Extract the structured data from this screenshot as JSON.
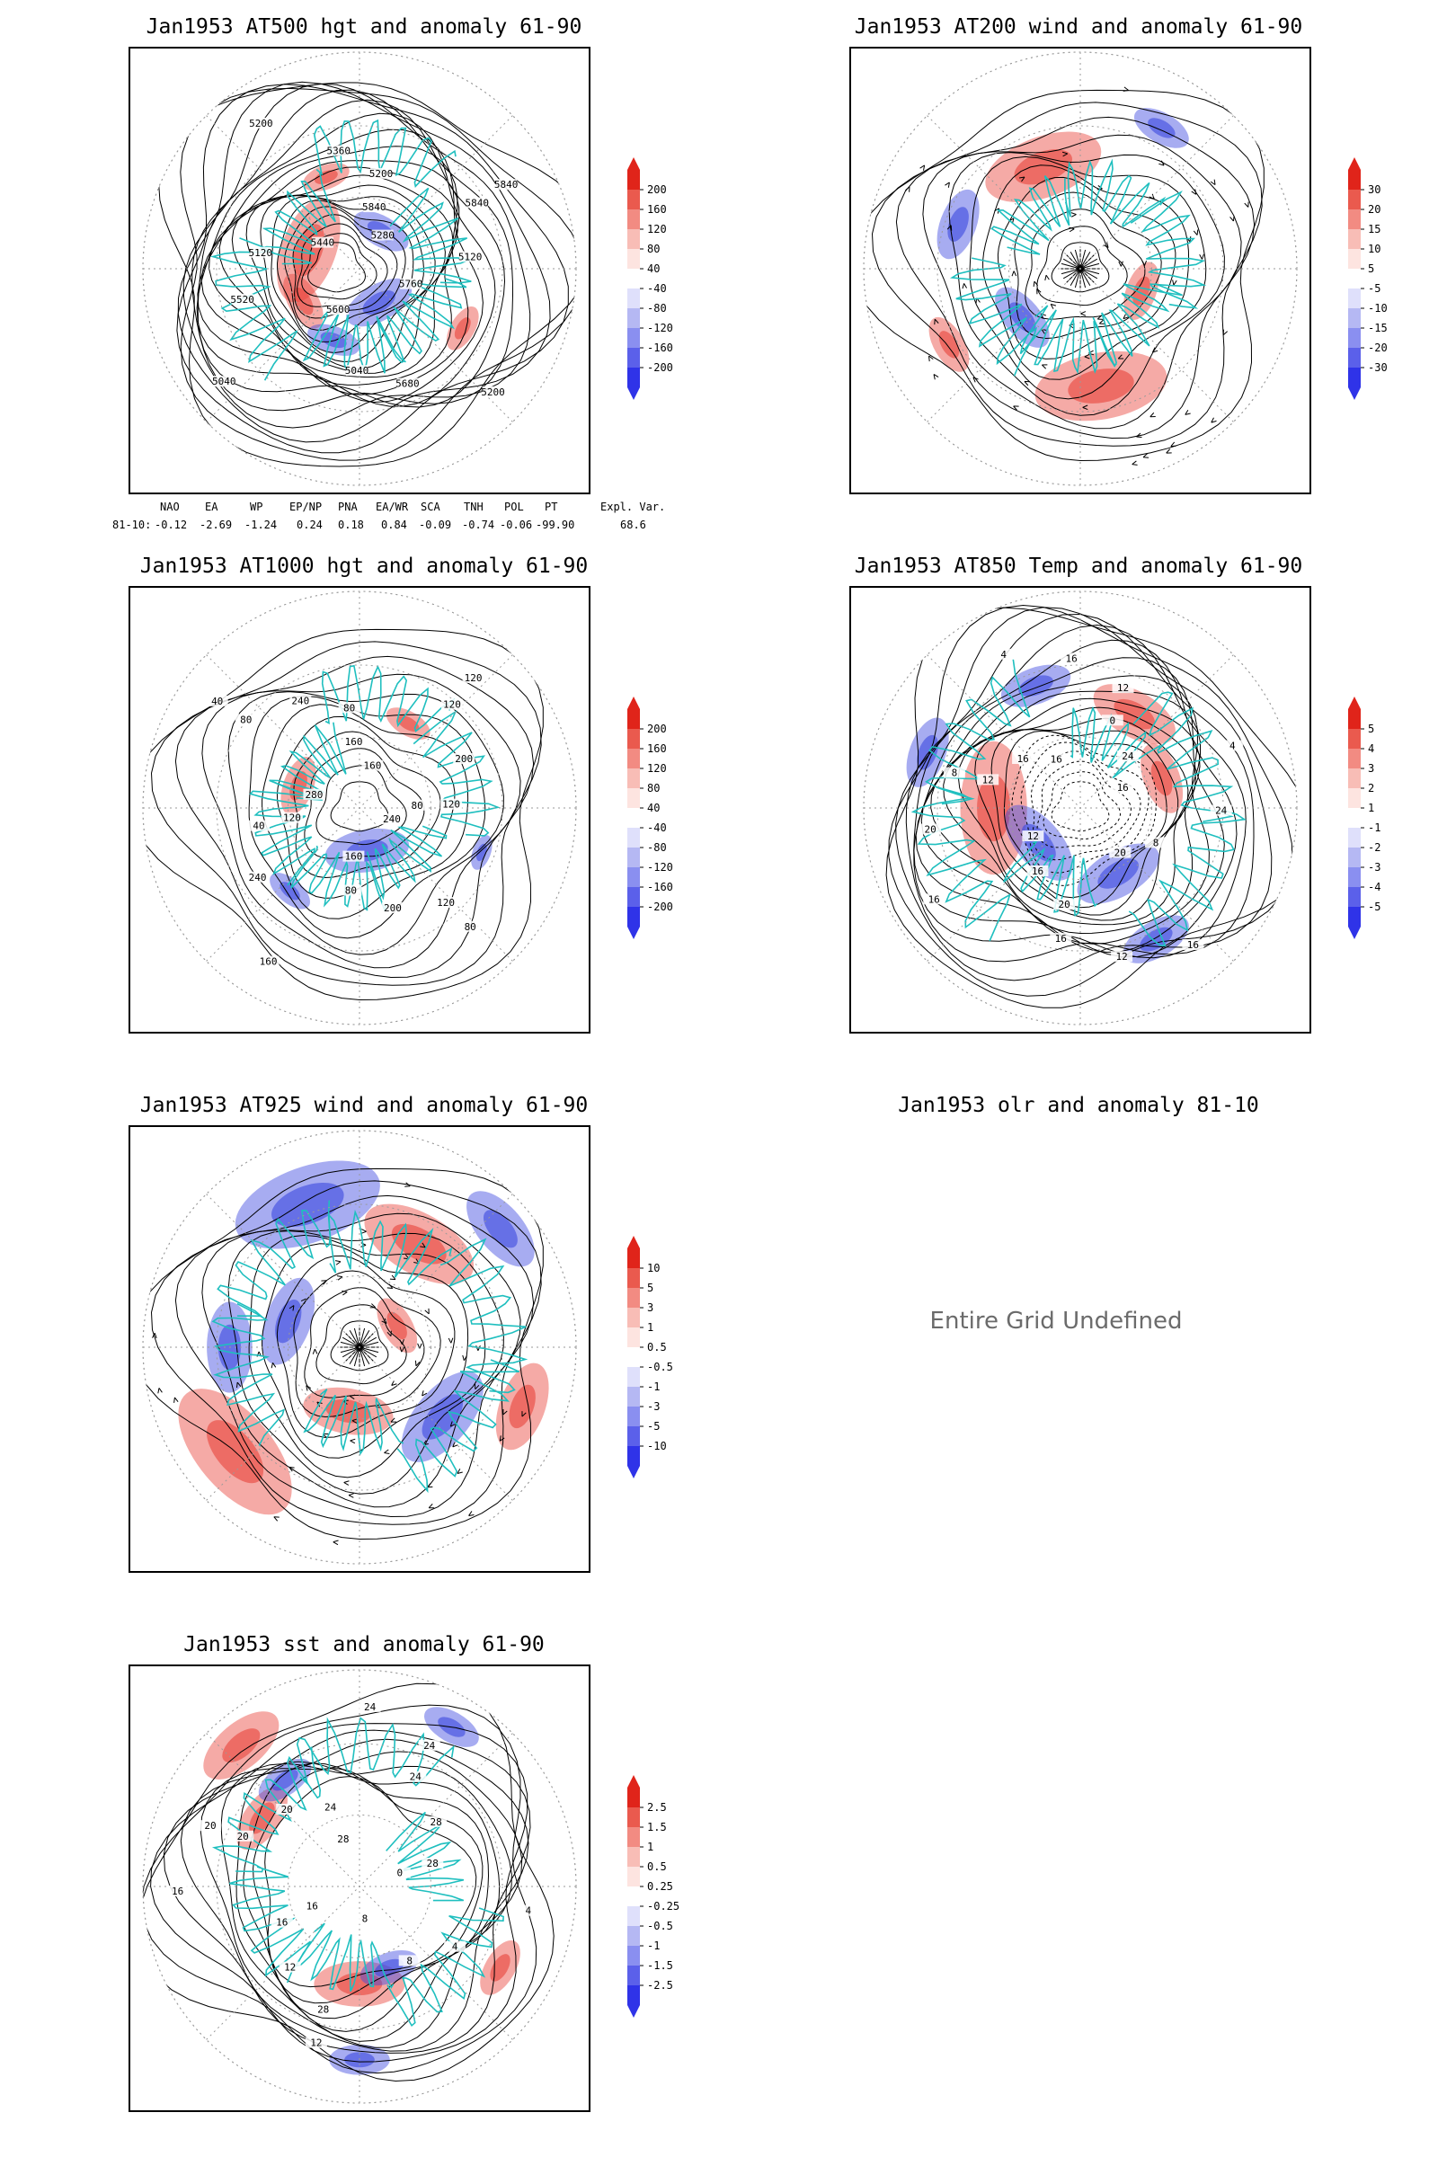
{
  "panels": [
    {
      "title": "Jan1953 AT500 hgt and anomaly 61-90",
      "contour_labels": [
        "5840",
        "5200",
        "5200",
        "5120",
        "5040",
        "5040",
        "5200",
        "5120",
        "5280",
        "5360",
        "5440",
        "5520",
        "5600",
        "5680",
        "5760",
        "5840",
        "5840"
      ],
      "colorbar": [
        "200",
        "160",
        "120",
        "80",
        "40",
        "-40",
        "-80",
        "-120",
        "-160",
        "-200"
      ]
    },
    {
      "title": "Jan1953 AT200 wind and anomaly 61-90",
      "colorbar": [
        "30",
        "20",
        "15",
        "10",
        "5",
        "-5",
        "-10",
        "-15",
        "-20",
        "-30"
      ]
    },
    {
      "title": "Jan1953 AT1000 hgt and anomaly 61-90",
      "contour_labels": [
        "80",
        "80",
        "120",
        "120",
        "80",
        "40",
        "40",
        "160",
        "200",
        "240",
        "200",
        "160",
        "240",
        "280",
        "240",
        "160",
        "120",
        "80",
        "120",
        "160",
        "80",
        "120"
      ],
      "colorbar": [
        "200",
        "160",
        "120",
        "80",
        "40",
        "-40",
        "-80",
        "-120",
        "-160",
        "-200"
      ]
    },
    {
      "title": "Jan1953 AT850 Temp and anomaly 61-90",
      "contour_labels": [
        "16",
        "12",
        "16",
        "8",
        "12",
        "16",
        "20",
        "24",
        "24",
        "16",
        "16",
        "20",
        "16",
        "12",
        "8",
        "4",
        "0",
        "4",
        "12",
        "16",
        "20",
        "16"
      ],
      "colorbar": [
        "5",
        "4",
        "3",
        "2",
        "1",
        "-1",
        "-2",
        "-3",
        "-4",
        "-5"
      ]
    },
    {
      "title": "Jan1953 AT925 wind and anomaly 61-90",
      "colorbar": [
        "10",
        "5",
        "3",
        "1",
        "0.5",
        "-0.5",
        "-1",
        "-3",
        "-5",
        "-10"
      ]
    },
    {
      "title": "Jan1953 olr and anomaly 81-10",
      "message": "Entire Grid Undefined"
    },
    {
      "title": "Jan1953 sst and anomaly 61-90",
      "contour_labels": [
        "28",
        "24",
        "24",
        "20",
        "16",
        "12",
        "8",
        "4",
        "28",
        "24",
        "20",
        "16",
        "12",
        "8",
        "4",
        "0",
        "24",
        "28",
        "20",
        "16",
        "28"
      ],
      "colorbar": [
        "2.5",
        "1.5",
        "1",
        "0.5",
        "0.25",
        "-0.25",
        "-0.5",
        "-1",
        "-1.5",
        "-2.5"
      ]
    }
  ],
  "teleconnection": {
    "headers": [
      "NAO",
      "EA",
      "WP",
      "EP/NP",
      "PNA",
      "EA/WR",
      "SCA",
      "TNH",
      "POL",
      "PT",
      "Expl. Var."
    ],
    "row_label": "81-10:",
    "values": [
      "-0.12",
      "-2.69",
      "-1.24",
      "0.24",
      "0.18",
      "0.84",
      "-0.09",
      "-0.74",
      "-0.06",
      "-99.90",
      "68.6"
    ]
  },
  "colors": {
    "land_outline": "#1fbfbf",
    "positive_anomaly": "#e8433a",
    "negative_anomaly": "#3b48e0",
    "contour": "#000000"
  }
}
